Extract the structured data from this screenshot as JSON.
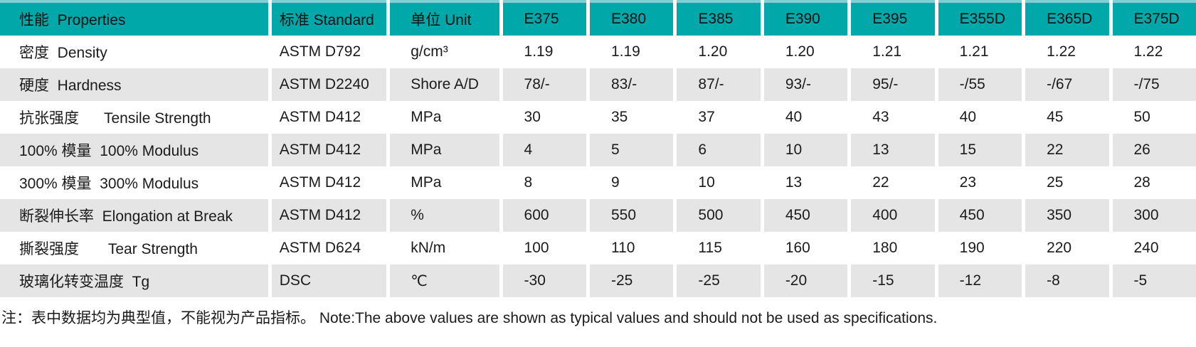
{
  "theme": {
    "header_bg": "#00a8aa",
    "header_top_edge": "#7ed0d1",
    "row_bg": "#ffffff",
    "row_alt_bg": "#e5e5e5",
    "text_color": "#1b1b1b"
  },
  "table": {
    "header": {
      "property": "性能  Properties",
      "standard": "标准 Standard",
      "unit": "单位 Unit",
      "grades": [
        "E375",
        "E380",
        "E385",
        "E390",
        "E395",
        "E355D",
        "E365D",
        "E375D"
      ]
    },
    "rows": [
      {
        "property": "密度  Density",
        "standard": "ASTM D792",
        "unit": "g/cm³",
        "values": [
          "1.19",
          "1.19",
          "1.20",
          "1.20",
          "1.21",
          "1.21",
          "1.22",
          "1.22"
        ]
      },
      {
        "property": "硬度  Hardness",
        "standard": "ASTM D2240",
        "unit": "Shore A/D",
        "values": [
          "78/-",
          "83/-",
          "87/-",
          "93/-",
          "95/-",
          "-/55",
          "-/67",
          "-/75"
        ]
      },
      {
        "property": "抗张强度      Tensile Strength",
        "standard": "ASTM D412",
        "unit": "MPa",
        "values": [
          "30",
          "35",
          "37",
          "40",
          "43",
          "40",
          "45",
          "50"
        ]
      },
      {
        "property": "100% 模量  100% Modulus",
        "standard": "ASTM D412",
        "unit": "MPa",
        "values": [
          "4",
          "5",
          "6",
          "10",
          "13",
          "15",
          "22",
          "26"
        ]
      },
      {
        "property": "300% 模量  300% Modulus",
        "standard": "ASTM D412",
        "unit": "MPa",
        "values": [
          "8",
          "9",
          "10",
          "13",
          "22",
          "23",
          "25",
          "28"
        ]
      },
      {
        "property": "断裂伸长率  Elongation at Break",
        "standard": "ASTM D412",
        "unit": "%",
        "values": [
          "600",
          "550",
          "500",
          "450",
          "400",
          "450",
          "350",
          "300"
        ]
      },
      {
        "property": "撕裂强度       Tear Strength",
        "standard": "ASTM D624",
        "unit": "kN/m",
        "values": [
          "100",
          "110",
          "115",
          "160",
          "180",
          "190",
          "220",
          "240"
        ]
      },
      {
        "property": "玻璃化转变温度  Tg",
        "standard": "DSC",
        "unit": "℃",
        "values": [
          "-30",
          "-25",
          "-25",
          "-20",
          "-15",
          "-12",
          "-8",
          "-5"
        ]
      }
    ]
  },
  "note": "注：表中数据均为典型值，不能视为产品指标。 Note:The above values are shown as typical values and should not be used as specifications."
}
